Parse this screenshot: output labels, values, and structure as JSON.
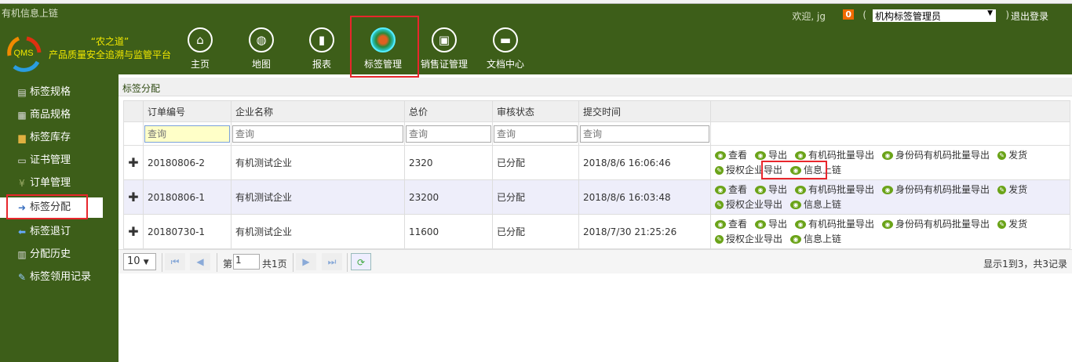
{
  "app_title": "有机信息上链",
  "logo_text": "QMS",
  "slogan": [
    "“农之道”",
    "产品质量安全追溯与监管平台"
  ],
  "nav": [
    {
      "label": "主页",
      "icon": "home-icon"
    },
    {
      "label": "地图",
      "icon": "globe-icon"
    },
    {
      "label": "报表",
      "icon": "bar-chart-icon"
    },
    {
      "label": "标签管理",
      "icon": "label-seal-icon",
      "active": true
    },
    {
      "label": "销售证管理",
      "icon": "certificate-icon"
    },
    {
      "label": "文档中心",
      "icon": "folder-icon"
    }
  ],
  "user": {
    "welcome": "欢迎, jg",
    "badge": "0",
    "role": "机构标签管理员",
    "open_paren": "(",
    "close_paren": ")",
    "logout": "退出登录"
  },
  "sidebar": [
    {
      "label": "标签规格",
      "icon": "doc-gear-icon"
    },
    {
      "label": "商品规格",
      "icon": "truck-icon"
    },
    {
      "label": "标签库存",
      "icon": "coins-icon"
    },
    {
      "label": "证书管理",
      "icon": "id-card-icon"
    },
    {
      "label": "订单管理",
      "icon": "yen-icon"
    },
    {
      "label": "标签分配",
      "icon": "doc-arrow-icon",
      "active": true
    },
    {
      "label": "标签退订",
      "icon": "doc-return-icon"
    },
    {
      "label": "分配历史",
      "icon": "binoculars-icon"
    },
    {
      "label": "标签领用记录",
      "icon": "pen-icon"
    }
  ],
  "panel_title": "标签分配",
  "table": {
    "headers": [
      "订单编号",
      "企业名称",
      "总价",
      "审核状态",
      "提交时间",
      ""
    ],
    "filter_placeholder": "查询",
    "rows": [
      {
        "order": "20180806-2",
        "company": "有机测试企业",
        "total": "2320",
        "status": "已分配",
        "time": "2018/8/6 16:06:46"
      },
      {
        "order": "20180806-1",
        "company": "有机测试企业",
        "total": "23200",
        "status": "已分配",
        "time": "2018/8/6 16:03:48"
      },
      {
        "order": "20180730-1",
        "company": "有机测试企业",
        "total": "11600",
        "status": "已分配",
        "time": "2018/7/30 21:25:26"
      }
    ],
    "actions": [
      "查看",
      "导出",
      "有机码批量导出",
      "身份码有机码批量导出",
      "发货",
      "授权企业导出",
      "信息上链"
    ]
  },
  "pager": {
    "page_size": "10",
    "page_prefix": "第",
    "page": "1",
    "total_pages": "共1页",
    "summary": "显示1到3，共3记录"
  },
  "colors": {
    "header_green": "#3d5e19",
    "highlight_red": "#e8262c",
    "action_green": "#6aa318"
  }
}
